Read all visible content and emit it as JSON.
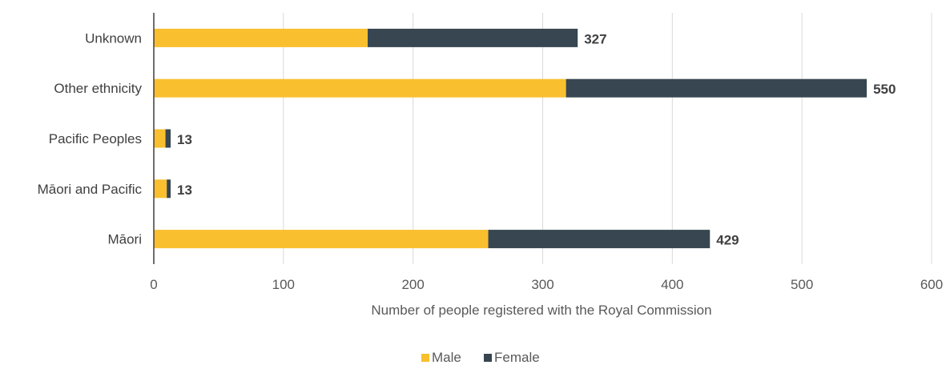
{
  "chart_data": {
    "type": "bar",
    "orientation": "horizontal",
    "stacked": true,
    "categories": [
      "Unknown",
      "Other ethnicity",
      "Pacific Peoples",
      "Māori and Pacific",
      "Māori"
    ],
    "series": [
      {
        "name": "Male",
        "values": [
          165,
          318,
          9,
          10,
          258
        ],
        "color": "#F9BF2E"
      },
      {
        "name": "Female",
        "values": [
          162,
          232,
          4,
          3,
          171
        ],
        "color": "#374650"
      }
    ],
    "totals": [
      "327",
      "550",
      "13",
      "13",
      "429"
    ],
    "xlabel": "Number of people registered with the Royal Commission",
    "xlim": [
      0,
      600
    ],
    "xticks": [
      "0",
      "100",
      "200",
      "300",
      "400",
      "500",
      "600"
    ],
    "grid": "vertical",
    "legend_placement": "bottom"
  }
}
